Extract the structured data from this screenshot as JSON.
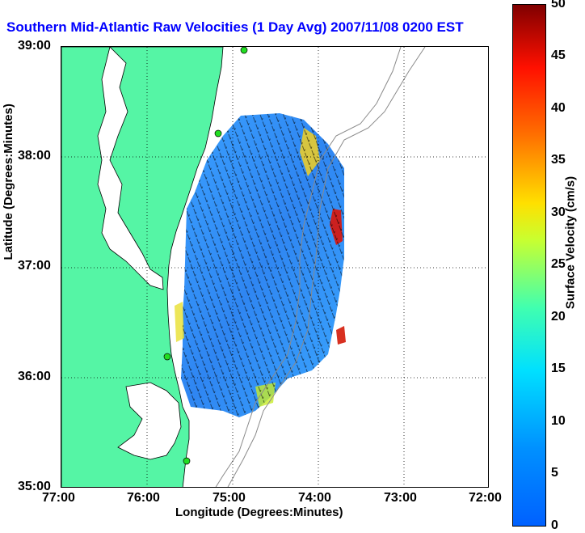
{
  "title": "Southern Mid-Atlantic Raw Velocities (1 Day Avg) 2007/11/08 0200 EST",
  "axes": {
    "xlabel": "Longitude (Degrees:Minutes)",
    "ylabel": "Latitude (Degrees:Minutes)",
    "x_ticks": [
      "77:00",
      "76:00",
      "75:00",
      "74:00",
      "73:00",
      "72:00"
    ],
    "y_ticks": [
      "39:00",
      "38:00",
      "37:00",
      "36:00",
      "35:00"
    ],
    "xlim": [
      -77,
      -72
    ],
    "ylim": [
      35,
      39
    ]
  },
  "colorbar": {
    "label": "Surface Velocity (cm/s)",
    "ticks": [
      "50",
      "45",
      "40",
      "35",
      "30",
      "25",
      "20",
      "15",
      "10",
      "5",
      "0"
    ],
    "range": [
      0,
      50
    ]
  },
  "colors": {
    "land": "#55f5a5",
    "water": "#ffffff",
    "field_low": "#2b8cff",
    "field_high": "#e8f020",
    "title": "#0000ff"
  },
  "stations": [
    "station-north",
    "station-delmarva",
    "station-cape-henry",
    "station-hatteras"
  ]
}
